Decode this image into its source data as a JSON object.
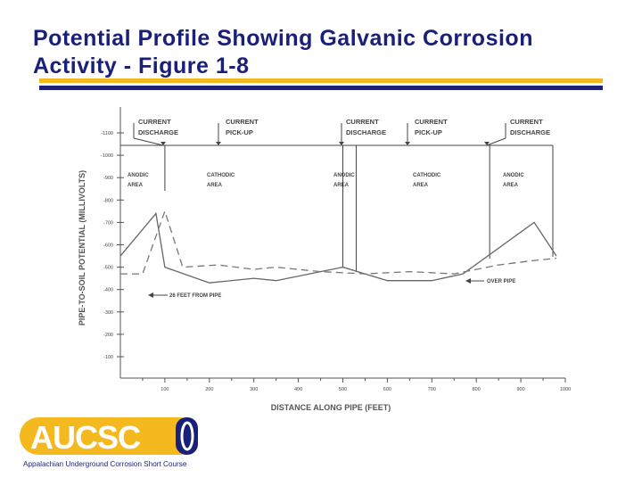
{
  "slide": {
    "title": "Potential Profile Showing Galvanic Corrosion Activity - Figure 1-8",
    "colors": {
      "title": "#1a1f7a",
      "rule_gold": "#f3b91f",
      "rule_navy": "#1a1f7a"
    }
  },
  "chart_data": {
    "type": "line",
    "title": "",
    "xlabel": "DISTANCE ALONG PIPE (FEET)",
    "ylabel": "PIPE-TO-SOIL POTENTIAL (MILLIVOLTS)",
    "xlim": [
      0,
      1000
    ],
    "ylim": [
      -1100,
      -100
    ],
    "x_ticks": [
      "100",
      "200",
      "300",
      "400",
      "500",
      "600",
      "700",
      "800",
      "900",
      "1000"
    ],
    "y_ticks": [
      "-1100",
      "-1000",
      "-900",
      "-800",
      "-700",
      "-600",
      "-500",
      "-400",
      "-300",
      "-200",
      "-100"
    ],
    "grid": false,
    "series": [
      {
        "name": "OVER PIPE",
        "style": "solid",
        "color": "#666666",
        "x": [
          0,
          80,
          100,
          200,
          300,
          350,
          450,
          500,
          600,
          700,
          770,
          930,
          980
        ],
        "y": [
          -550,
          -740,
          -500,
          -430,
          -450,
          -440,
          -480,
          -500,
          -440,
          -440,
          -470,
          -700,
          -550
        ]
      },
      {
        "name": "26 FEET FROM PIPE",
        "style": "dashed",
        "color": "#777777",
        "x": [
          0,
          50,
          100,
          140,
          220,
          300,
          350,
          450,
          550,
          650,
          750,
          850,
          930,
          980
        ],
        "y": [
          -470,
          -470,
          -750,
          -500,
          -510,
          -490,
          -500,
          -480,
          -470,
          -480,
          -470,
          -510,
          -530,
          -540
        ]
      }
    ],
    "zones": {
      "markers_x": [
        100,
        500,
        830
      ],
      "discharge_labels": [
        {
          "line1": "CURRENT",
          "line2": "DISCHARGE"
        },
        {
          "line1": "CURRENT",
          "line2": "DISCHARGE"
        },
        {
          "line1": "CURRENT",
          "line2": "DISCHARGE"
        }
      ],
      "pickup_labels": [
        {
          "line1": "CURRENT",
          "line2": "PICK-UP"
        },
        {
          "line1": "CURRENT",
          "line2": "PICK-UP"
        }
      ],
      "area_labels": [
        {
          "line1": "ANODIC",
          "line2": "AREA"
        },
        {
          "line1": "CATHODIC",
          "line2": "AREA"
        },
        {
          "line1": "ANODIC",
          "line2": "AREA"
        },
        {
          "line1": "CATHODIC",
          "line2": "AREA"
        },
        {
          "line1": "ANODIC",
          "line2": "AREA"
        }
      ]
    },
    "annotations": [
      {
        "text": "26 FEET FROM PIPE",
        "series": "dashed"
      },
      {
        "text": "OVER PIPE",
        "series": "solid"
      }
    ]
  },
  "logo": {
    "text": "AUCSC",
    "tagline": "Appalachian Underground Corrosion Short Course",
    "colors": {
      "gold": "#f3b91f",
      "navy": "#1a1f7a"
    }
  }
}
